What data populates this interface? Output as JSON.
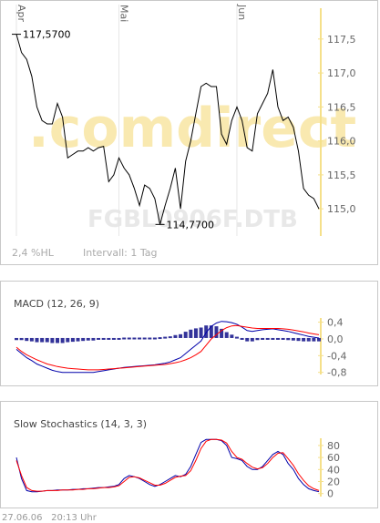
{
  "main": {
    "watermark_brand": ".comdirect",
    "watermark_symbol": "FGBL0906F.DTB",
    "hl_label": "2,4 %HL",
    "interval_label": "Intervall: 1 Tag",
    "high_label": "117,5700",
    "low_label": "114,7700"
  },
  "macd": {
    "title": "MACD (12, 26, 9)"
  },
  "stoch": {
    "title": "Slow Stochastics (14, 3, 3)"
  },
  "footer": {
    "date": "27.06.06",
    "time": "20:13 Uhr"
  },
  "colors": {
    "price": "#000000",
    "accent": "#f5e08a",
    "red": "#ff0000",
    "blue": "#0000aa",
    "hist": "#33339a",
    "watermark": "#f9e9b0"
  },
  "chart_data": [
    {
      "type": "line",
      "name": "price",
      "x_tick_labels": [
        {
          "label": "Apr",
          "index": 0
        },
        {
          "label": "Mai",
          "index": 20
        },
        {
          "label": "Jun",
          "index": 43
        }
      ],
      "y_ticks": [
        "117,5",
        "117,0",
        "116,5",
        "116,0",
        "115,5",
        "115,0"
      ],
      "y_tick_values": [
        117.5,
        117.0,
        116.5,
        116.0,
        115.5,
        115.0
      ],
      "ylim": [
        114.6,
        117.9
      ],
      "values": [
        117.57,
        117.3,
        117.2,
        116.95,
        116.5,
        116.3,
        116.25,
        116.25,
        116.55,
        116.35,
        115.75,
        115.8,
        115.85,
        115.85,
        115.9,
        115.85,
        115.9,
        115.92,
        115.4,
        115.5,
        115.75,
        115.6,
        115.5,
        115.3,
        115.05,
        115.35,
        115.3,
        115.15,
        114.77,
        115.05,
        115.3,
        115.6,
        115.0,
        115.7,
        116.0,
        116.4,
        116.8,
        116.85,
        116.8,
        116.8,
        116.1,
        115.95,
        116.3,
        116.5,
        116.3,
        115.9,
        115.85,
        116.4,
        116.55,
        116.7,
        117.05,
        116.5,
        116.3,
        116.35,
        116.2,
        115.85,
        115.3,
        115.2,
        115.15,
        115.0
      ],
      "annotations": [
        {
          "label": "117,5700",
          "index": 0,
          "value": 117.57
        },
        {
          "label": "114,7700",
          "index": 28,
          "value": 114.77
        }
      ]
    },
    {
      "type": "line",
      "name": "MACD (12, 26, 9)",
      "y_ticks": [
        "0,4",
        "0,0",
        "-0,4",
        "-0,8"
      ],
      "y_tick_values": [
        0.4,
        0.0,
        -0.4,
        -0.8
      ],
      "ylim": [
        -0.85,
        0.5
      ],
      "series": [
        {
          "name": "macd",
          "color": "#0000aa",
          "values": [
            -0.25,
            -0.35,
            -0.45,
            -0.52,
            -0.6,
            -0.65,
            -0.7,
            -0.75,
            -0.78,
            -0.8,
            -0.8,
            -0.8,
            -0.8,
            -0.8,
            -0.8,
            -0.8,
            -0.78,
            -0.76,
            -0.74,
            -0.72,
            -0.7,
            -0.68,
            -0.67,
            -0.66,
            -0.65,
            -0.64,
            -0.63,
            -0.62,
            -0.6,
            -0.58,
            -0.55,
            -0.5,
            -0.45,
            -0.35,
            -0.25,
            -0.15,
            -0.05,
            0.15,
            0.3,
            0.38,
            0.42,
            0.41,
            0.39,
            0.35,
            0.28,
            0.2,
            0.18,
            0.2,
            0.22,
            0.23,
            0.24,
            0.22,
            0.2,
            0.18,
            0.15,
            0.12,
            0.09,
            0.06,
            0.04,
            0.02
          ]
        },
        {
          "name": "signal",
          "color": "#ff0000",
          "values": [
            -0.2,
            -0.3,
            -0.38,
            -0.44,
            -0.5,
            -0.55,
            -0.6,
            -0.63,
            -0.66,
            -0.68,
            -0.7,
            -0.71,
            -0.72,
            -0.73,
            -0.74,
            -0.74,
            -0.74,
            -0.73,
            -0.72,
            -0.71,
            -0.7,
            -0.69,
            -0.68,
            -0.67,
            -0.66,
            -0.65,
            -0.64,
            -0.63,
            -0.62,
            -0.61,
            -0.59,
            -0.57,
            -0.54,
            -0.5,
            -0.45,
            -0.38,
            -0.3,
            -0.15,
            0.0,
            0.1,
            0.2,
            0.27,
            0.31,
            0.32,
            0.3,
            0.28,
            0.26,
            0.25,
            0.25,
            0.25,
            0.25,
            0.25,
            0.24,
            0.23,
            0.21,
            0.19,
            0.17,
            0.14,
            0.12,
            0.1
          ]
        },
        {
          "name": "histogram",
          "color": "#33339a",
          "values": [
            -0.05,
            -0.05,
            -0.07,
            -0.08,
            -0.1,
            -0.1,
            -0.1,
            -0.12,
            -0.12,
            -0.12,
            -0.1,
            -0.09,
            -0.08,
            -0.07,
            -0.06,
            -0.06,
            -0.04,
            -0.03,
            -0.02,
            -0.01,
            0.0,
            0.01,
            0.01,
            0.01,
            0.01,
            0.01,
            0.01,
            0.01,
            0.02,
            0.03,
            0.04,
            0.07,
            0.09,
            0.15,
            0.2,
            0.23,
            0.25,
            0.3,
            0.3,
            0.28,
            0.22,
            0.14,
            0.08,
            0.03,
            -0.02,
            -0.08,
            -0.08,
            -0.05,
            -0.03,
            -0.02,
            -0.01,
            -0.03,
            -0.04,
            -0.05,
            -0.06,
            -0.07,
            -0.08,
            -0.08,
            -0.08,
            -0.08
          ]
        }
      ]
    },
    {
      "type": "line",
      "name": "Slow Stochastics (14, 3, 3)",
      "y_ticks": [
        "80",
        "60",
        "40",
        "20",
        "0"
      ],
      "y_tick_values": [
        80,
        60,
        40,
        20,
        0
      ],
      "ylim": [
        -5,
        92
      ],
      "series": [
        {
          "name": "%K",
          "color": "#0000aa",
          "values": [
            60,
            25,
            5,
            3,
            3,
            4,
            5,
            5,
            6,
            6,
            6,
            7,
            7,
            8,
            8,
            9,
            10,
            10,
            11,
            12,
            15,
            25,
            30,
            28,
            25,
            20,
            15,
            12,
            15,
            20,
            25,
            30,
            28,
            32,
            45,
            65,
            85,
            90,
            90,
            90,
            88,
            80,
            60,
            58,
            55,
            45,
            40,
            40,
            45,
            55,
            65,
            70,
            65,
            50,
            40,
            25,
            15,
            8,
            5,
            3
          ]
        },
        {
          "name": "%D",
          "color": "#ff0000",
          "values": [
            55,
            30,
            10,
            5,
            4,
            4,
            5,
            5,
            5,
            6,
            6,
            6,
            7,
            7,
            8,
            8,
            9,
            10,
            10,
            11,
            13,
            20,
            27,
            28,
            26,
            22,
            18,
            14,
            14,
            17,
            22,
            27,
            29,
            30,
            38,
            55,
            75,
            87,
            90,
            90,
            89,
            84,
            70,
            60,
            57,
            50,
            44,
            41,
            43,
            50,
            60,
            67,
            68,
            58,
            47,
            33,
            22,
            13,
            8,
            5
          ]
        }
      ]
    }
  ]
}
